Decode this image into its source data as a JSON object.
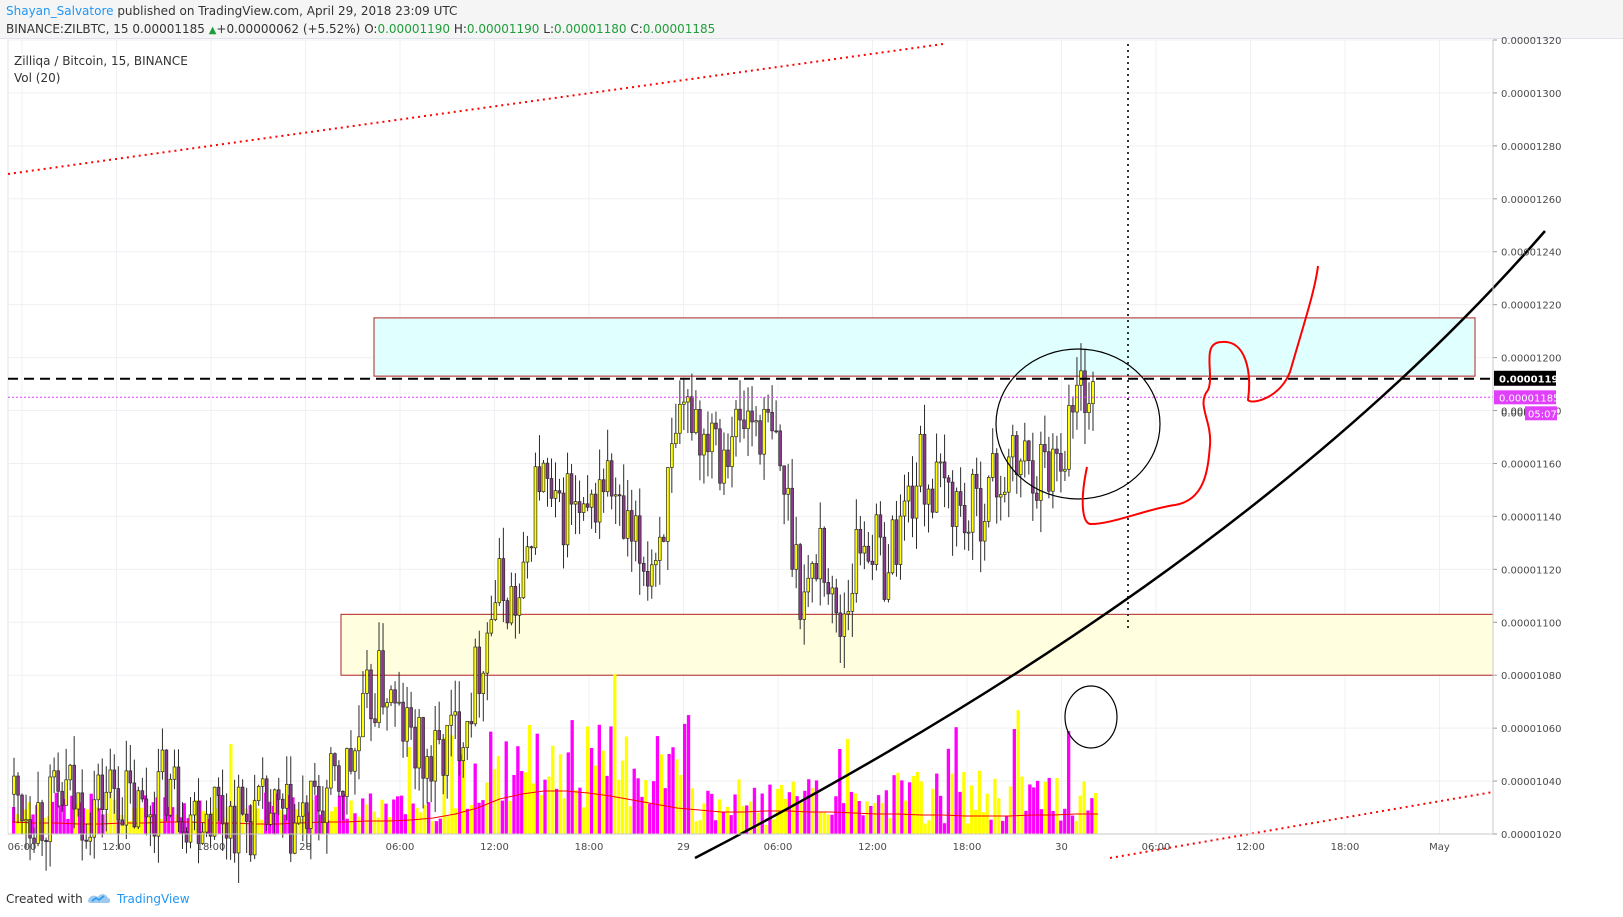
{
  "header": {
    "author": "Shayan_Salvatore",
    "published_text": " published on TradingView.com, April 29, 2018 23:09 UTC",
    "symbol_line": "BINANCE:ZILBTC, 15",
    "last": "0.00001185",
    "change_arrow": "▲",
    "change": "+0.00000062 (+5.52%)",
    "o_label": "O:",
    "o_value": "0.00001190",
    "h_label": "H:",
    "h_value": "0.00001190",
    "l_label": "L:",
    "l_value": "0.00001180",
    "c_label": "C:",
    "c_value": "0.00001185"
  },
  "legend": {
    "title": "Zilliqa / Bitcoin, 15, BINANCE",
    "volume_label": "Vol (20)"
  },
  "footer": {
    "created_with": "Created with",
    "brand": "TradingView"
  },
  "colors": {
    "up_candle": "#ffff00",
    "down_candle": "#8b3a8b",
    "vol_up": "#ffff00",
    "vol_down": "#ff00ff",
    "vol_ma": "#ff0000",
    "resistance_zone": "#e0ffff",
    "support_zone": "#ffffe0",
    "zone_border": "#b22222",
    "price_label_bg": "#e040fb",
    "current_line_label_bg": "#000000",
    "trend_dotted": "#ff0000",
    "curve": "#000000",
    "drawing": "#ff0000"
  },
  "chart_data": {
    "type": "candlestick",
    "symbol": "ZILBTC",
    "interval": "15",
    "exchange": "BINANCE",
    "y_axis": {
      "min": 1.02e-05,
      "max": 1.32e-05,
      "ticks": [
        "0.00001320",
        "0.00001300",
        "0.00001280",
        "0.00001260",
        "0.00001240",
        "0.00001220",
        "0.00001200",
        "0.00001180",
        "0.00001160",
        "0.00001140",
        "0.00001120",
        "0.00001100",
        "0.00001080",
        "0.00001060",
        "0.00001040",
        "0.00001020"
      ]
    },
    "x_axis": {
      "ticks": [
        "06:00",
        "12:00",
        "18:00",
        "28",
        "06:00",
        "12:00",
        "18:00",
        "29",
        "06:00",
        "12:00",
        "18:00",
        "30",
        "06:00",
        "12:00",
        "18:00",
        "May"
      ]
    },
    "price_labels": {
      "horizontal_line": "0.00001192",
      "current_price": "0.00001185",
      "countdown": "05:07",
      "partial_tick": "0.000"
    },
    "zones": [
      {
        "name": "resistance",
        "low": 1.193e-05,
        "high": 1.215e-05
      },
      {
        "name": "support",
        "low": 1.08e-05,
        "high": 1.103e-05
      }
    ],
    "close_path": [
      1.035e-05,
      1.032e-05,
      1.03e-05,
      1.028e-05,
      1.03e-05,
      1.033e-05,
      1.036e-05,
      1.031e-05,
      1.029e-05,
      1.032e-05,
      1.036e-05,
      1.038e-05,
      1.034e-05,
      1.03e-05,
      1.028e-05,
      1.031e-05,
      1.037e-05,
      1.04e-05,
      1.036e-05,
      1.03e-05,
      1.028e-05,
      1.03e-05,
      1.032e-05,
      1.029e-05,
      1.027e-05,
      1.026e-05,
      1.025e-05,
      1.026e-05,
      1.027e-05,
      1.025e-05,
      1.024e-05,
      1.023e-05,
      1.025e-05,
      1.028e-05,
      1.032e-05,
      1.036e-05,
      1.04e-05,
      1.045e-05,
      1.055e-05,
      1.068e-05,
      1.075e-05,
      1.077e-05,
      1.065e-05,
      1.06e-05,
      1.055e-05,
      1.048e-05,
      1.045e-05,
      1.05e-05,
      1.055e-05,
      1.06e-05,
      1.068e-05,
      1.08e-05,
      1.095e-05,
      1.11e-05,
      1.112e-05,
      1.108e-05,
      1.105e-05,
      1.14e-05,
      1.158e-05,
      1.145e-05,
      1.135e-05,
      1.148e-05,
      1.14e-05,
      1.132e-05,
      1.145e-05,
      1.155e-05,
      1.15e-05,
      1.135e-05,
      1.128e-05,
      1.125e-05,
      1.122e-05,
      1.13e-05,
      1.148e-05,
      1.162e-05,
      1.175e-05,
      1.184e-05,
      1.168e-05,
      1.182e-05,
      1.165e-05,
      1.175e-05,
      1.172e-05,
      1.178e-05,
      1.176e-05,
      1.172e-05,
      1.165e-05,
      1.15e-05,
      1.13e-05,
      1.11e-05,
      1.115e-05,
      1.135e-05,
      1.108e-05,
      1.098e-05,
      1.112e-05,
      1.128e-05,
      1.135e-05,
      1.128e-05,
      1.122e-05,
      1.13e-05,
      1.14e-05,
      1.15e-05,
      1.158e-05,
      1.152e-05,
      1.148e-05,
      1.15e-05,
      1.145e-05,
      1.138e-05,
      1.142e-05,
      1.148e-05,
      1.152e-05,
      1.155e-05,
      1.158e-05,
      1.16e-05,
      1.162e-05,
      1.158e-05,
      1.16e-05,
      1.165e-05,
      1.17e-05,
      1.185e-05,
      1.19e-05,
      1.185e-05
    ],
    "volume_ma": [
      0.12,
      0.11,
      0.11,
      0.1,
      0.1,
      0.11,
      0.11,
      0.12,
      0.12,
      0.11,
      0.11,
      0.1,
      0.1,
      0.11,
      0.12,
      0.12,
      0.13,
      0.13,
      0.14,
      0.16,
      0.2,
      0.26,
      0.35,
      0.4,
      0.43,
      0.43,
      0.41,
      0.38,
      0.34,
      0.3,
      0.26,
      0.24,
      0.22,
      0.22,
      0.23,
      0.23,
      0.22,
      0.22,
      0.21,
      0.2,
      0.2,
      0.19,
      0.19,
      0.18,
      0.18,
      0.18,
      0.19,
      0.19,
      0.2,
      0.2
    ]
  }
}
